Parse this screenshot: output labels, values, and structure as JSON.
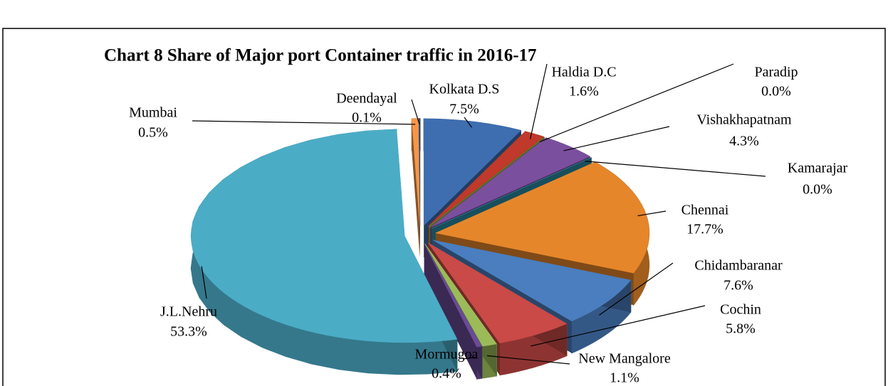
{
  "chart_data": {
    "type": "pie",
    "title": "Chart 8 Share of Major port Container traffic in 2016-17",
    "categories": [
      "Kolkata D.S",
      "Haldia D.C",
      "Paradip",
      "Vishakhapatnam",
      "Kamarajar",
      "Chennai",
      "Chidambaranar",
      "Cochin",
      "New Mangalore",
      "Mormugoa",
      "J.L.Nehru",
      "Mumbai",
      "Deendayal"
    ],
    "values": [
      7.5,
      1.6,
      0.0,
      4.3,
      0.0,
      17.7,
      7.6,
      5.8,
      1.1,
      0.4,
      53.3,
      0.5,
      0.1
    ],
    "value_labels": [
      "7.5%",
      "1.6%",
      "0.0%",
      "4.3%",
      "0.0%",
      "17.7%",
      "7.6%",
      "5.8%",
      "1.1%",
      "0.4%",
      "53.3%",
      "0.5%",
      "0.1%"
    ],
    "colors": [
      "#3e6eb0",
      "#c0392b",
      "#8aae44",
      "#7a4f9e",
      "#2b8fa6",
      "#e6862a",
      "#4a7ebf",
      "#c94a47",
      "#9bbb59",
      "#6a4b97",
      "#4bacc6",
      "#f79646",
      "#2c4d75"
    ]
  }
}
